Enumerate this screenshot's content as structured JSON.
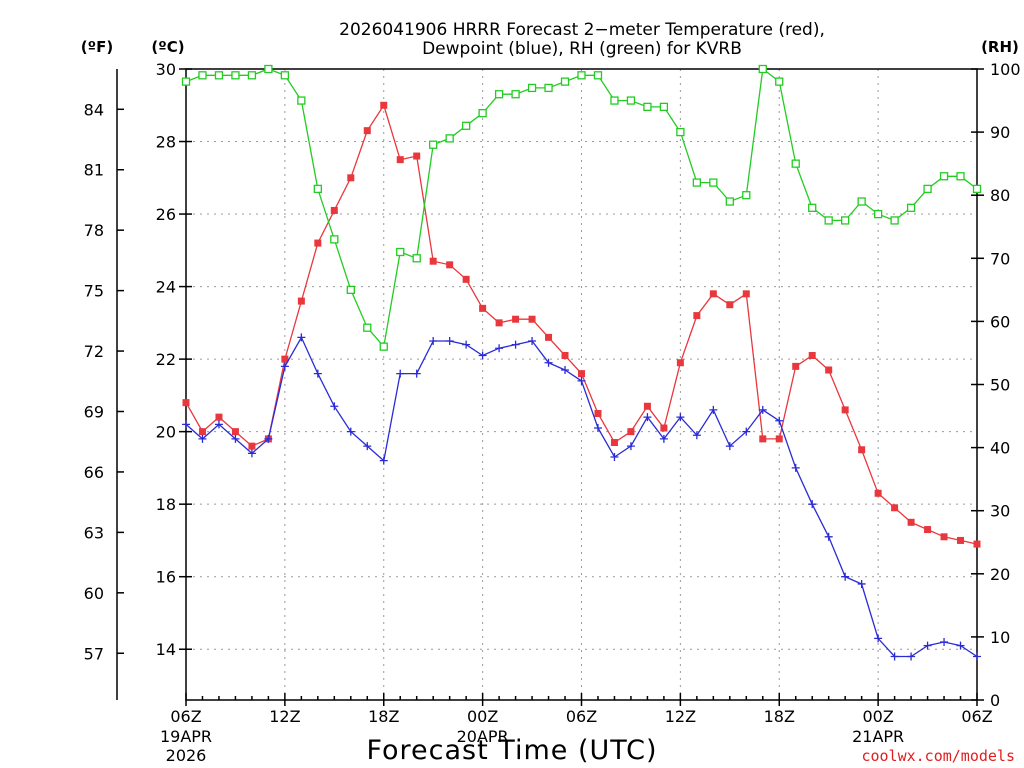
{
  "chart_data": {
    "type": "line",
    "title": "2026041906 HRRR Forecast 2-meter Temperature (red), Dewpoint (blue), RH (green) for KVRB",
    "title_lines": [
      "2026041906 HRRR Forecast 2−meter Temperature (red),",
      "Dewpoint (blue), RH (green) for KVRB"
    ],
    "xlabel": "Forecast Time (UTC)",
    "credit": "coolwx.com/models",
    "unit_labels": {
      "fahrenheit": "(ºF)",
      "celsius": "(ºC)",
      "rh": "(RH)"
    },
    "x_forecast_hours": [
      0,
      48
    ],
    "x_ticks": [
      {
        "hour": 0,
        "label": "06Z",
        "sub": "19APR",
        "sub2": "2026"
      },
      {
        "hour": 6,
        "label": "12Z"
      },
      {
        "hour": 12,
        "label": "18Z"
      },
      {
        "hour": 18,
        "label": "00Z",
        "sub": "20APR"
      },
      {
        "hour": 24,
        "label": "06Z"
      },
      {
        "hour": 30,
        "label": "12Z"
      },
      {
        "hour": 36,
        "label": "18Z"
      },
      {
        "hour": 42,
        "label": "00Z",
        "sub": "21APR"
      },
      {
        "hour": 48,
        "label": "06Z"
      }
    ],
    "celsius_axis": {
      "ylim": [
        12.6,
        30
      ],
      "ticks": [
        14,
        16,
        18,
        20,
        22,
        24,
        26,
        28,
        30
      ]
    },
    "fahrenheit_ticks": [
      57,
      60,
      63,
      66,
      69,
      72,
      75,
      78,
      81,
      84
    ],
    "rh_axis": {
      "ylim": [
        0,
        100
      ],
      "ticks": [
        0,
        10,
        20,
        30,
        40,
        50,
        60,
        70,
        80,
        90,
        100
      ]
    },
    "colors": {
      "temperature": "#e8383d",
      "dewpoint": "#2b2bd6",
      "rh": "#22cc22",
      "grid": "#9a9a9a"
    },
    "series": [
      {
        "name": "Temperature",
        "axis": "celsius",
        "marker": "filled-square",
        "values": [
          20.8,
          20.0,
          20.4,
          20.0,
          19.6,
          19.8,
          22.0,
          23.6,
          25.2,
          26.1,
          27.0,
          28.3,
          29.0,
          27.5,
          27.6,
          24.7,
          24.6,
          24.2,
          23.4,
          23.0,
          23.1,
          23.1,
          22.6,
          22.1,
          21.6,
          20.5,
          19.7,
          20.0,
          20.7,
          20.1,
          21.9,
          23.2,
          23.8,
          23.5,
          23.8,
          19.8,
          19.8,
          21.8,
          22.1,
          21.7,
          20.6,
          19.5,
          18.3,
          17.9,
          17.5,
          17.3,
          17.1,
          17.0,
          16.9
        ]
      },
      {
        "name": "Dewpoint",
        "axis": "celsius",
        "marker": "plus",
        "values": [
          20.2,
          19.8,
          20.2,
          19.8,
          19.4,
          19.8,
          21.8,
          22.6,
          21.6,
          20.7,
          20.0,
          19.6,
          19.2,
          21.6,
          21.6,
          22.5,
          22.5,
          22.4,
          22.1,
          22.3,
          22.4,
          22.5,
          21.9,
          21.7,
          21.4,
          20.1,
          19.3,
          19.6,
          20.4,
          19.8,
          20.4,
          19.9,
          20.6,
          19.6,
          20.0,
          20.6,
          20.3,
          19.0,
          18.0,
          17.1,
          16.0,
          15.8,
          14.3,
          13.8,
          13.8,
          14.1,
          14.2,
          14.1,
          13.8
        ]
      },
      {
        "name": "RH",
        "axis": "rh",
        "marker": "open-square",
        "values": [
          98,
          99,
          99,
          99,
          99,
          100,
          99,
          95,
          81,
          73,
          65,
          59,
          56,
          71,
          70,
          88,
          89,
          91,
          93,
          96,
          96,
          97,
          97,
          98,
          99,
          99,
          95,
          95,
          94,
          94,
          90,
          82,
          82,
          79,
          80,
          100,
          98,
          85,
          78,
          76,
          76,
          79,
          77,
          76,
          78,
          81,
          83,
          83,
          81
        ]
      }
    ]
  }
}
